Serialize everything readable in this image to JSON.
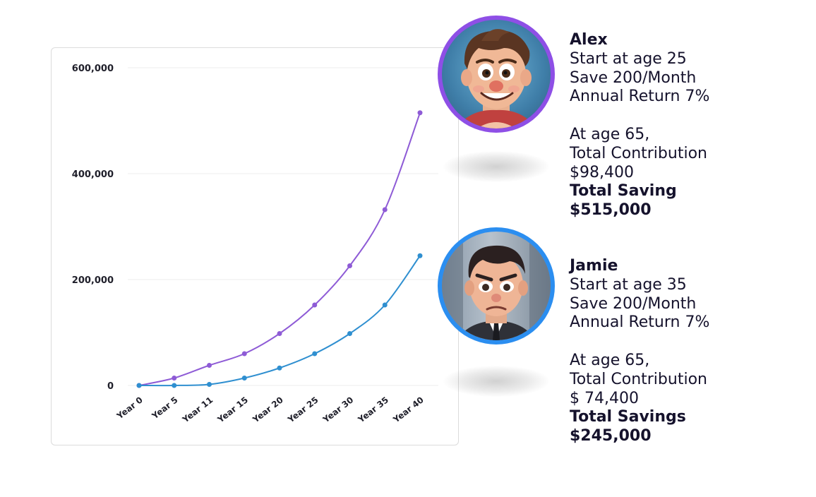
{
  "chart_data": {
    "type": "line",
    "categories": [
      "Year 0",
      "Year 5",
      "Year 11",
      "Year 15",
      "Year 20",
      "Year 25",
      "Year 30",
      "Year 35",
      "Year 40"
    ],
    "y_tick_labels": [
      "600,000",
      "400,000",
      "200,000",
      "0"
    ],
    "y_ticks": [
      600000,
      400000,
      200000,
      0
    ],
    "ylim": [
      0,
      600000
    ],
    "grid": true,
    "series": [
      {
        "values": [
          0,
          14000,
          38000,
          60000,
          98000,
          152000,
          226000,
          332000,
          515000
        ],
        "color": "#8e5bd6"
      },
      {
        "values": [
          0,
          0,
          2000,
          14000,
          33000,
          60000,
          98000,
          152000,
          245000
        ],
        "color": "#2f8fd0"
      }
    ]
  },
  "profiles": [
    {
      "name": "Alex",
      "start": "Start at age 25",
      "save": "Save 200/Month",
      "return": "Annual Return 7%",
      "age_line": "At age 65,",
      "contribution_label": "Total Contribution",
      "contribution_value": "$98,400",
      "savings_label": "Total Saving",
      "savings_value": "$515,000",
      "ring_color": "#8e4fe6",
      "avatar_icon": "cartoon-smiling-man"
    },
    {
      "name": "Jamie",
      "start": "Start at age 35",
      "save": "Save 200/Month",
      "return": "Annual Return 7%",
      "age_line": "At age 65,",
      "contribution_label": "Total Contribution",
      "contribution_value": "$ 74,400",
      "savings_label": "Total Savings",
      "savings_value": "$245,000",
      "ring_color": "#2b8ef0",
      "avatar_icon": "cartoon-frowning-man"
    }
  ]
}
